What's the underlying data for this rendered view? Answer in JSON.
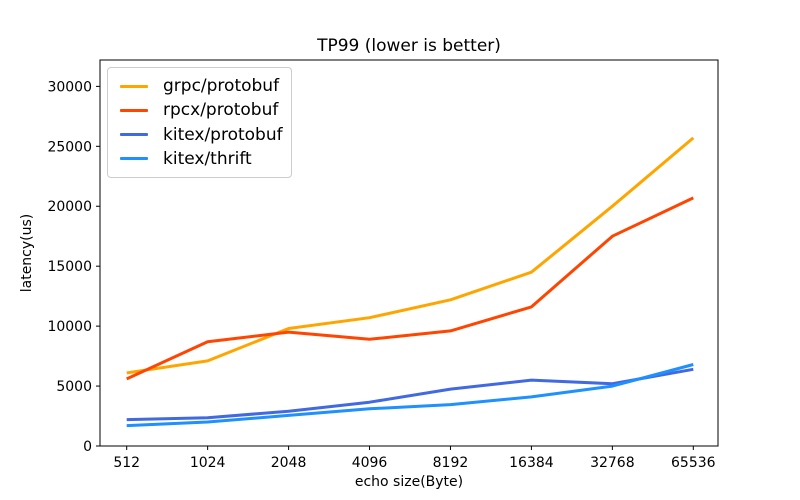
{
  "figure": {
    "title": "TP99 (lower is better)",
    "xlabel": "echo size(Byte)",
    "ylabel": "latency(us)"
  },
  "chart_data": {
    "type": "line",
    "title": "TP99 (lower is better)",
    "xlabel": "echo size(Byte)",
    "ylabel": "latency(us)",
    "categories": [
      "512",
      "1024",
      "2048",
      "4096",
      "8192",
      "16384",
      "32768",
      "65536"
    ],
    "x_scale": "categorical-equal-spacing",
    "grid": false,
    "legend_position": "upper left",
    "ylim": [
      0,
      32200
    ],
    "yticks": [
      0,
      5000,
      10000,
      15000,
      20000,
      25000,
      30000
    ],
    "line_width": 3,
    "series": [
      {
        "name": "grpc/protobuf",
        "color": "#ffa500",
        "values": [
          6100,
          7100,
          9800,
          10700,
          12200,
          14500,
          20000,
          25700
        ]
      },
      {
        "name": "rpcx/protobuf",
        "color": "#ff4500",
        "values": [
          5600,
          8700,
          9500,
          8900,
          9600,
          11600,
          17500,
          20700
        ]
      },
      {
        "name": "kitex/protobuf",
        "color": "#4169e1",
        "values": [
          2200,
          2350,
          2900,
          3650,
          4750,
          5500,
          5200,
          6400
        ]
      },
      {
        "name": "kitex/thrift",
        "color": "#1e90ff",
        "values": [
          1700,
          2000,
          2550,
          3100,
          3450,
          4100,
          5000,
          6800
        ]
      }
    ]
  }
}
